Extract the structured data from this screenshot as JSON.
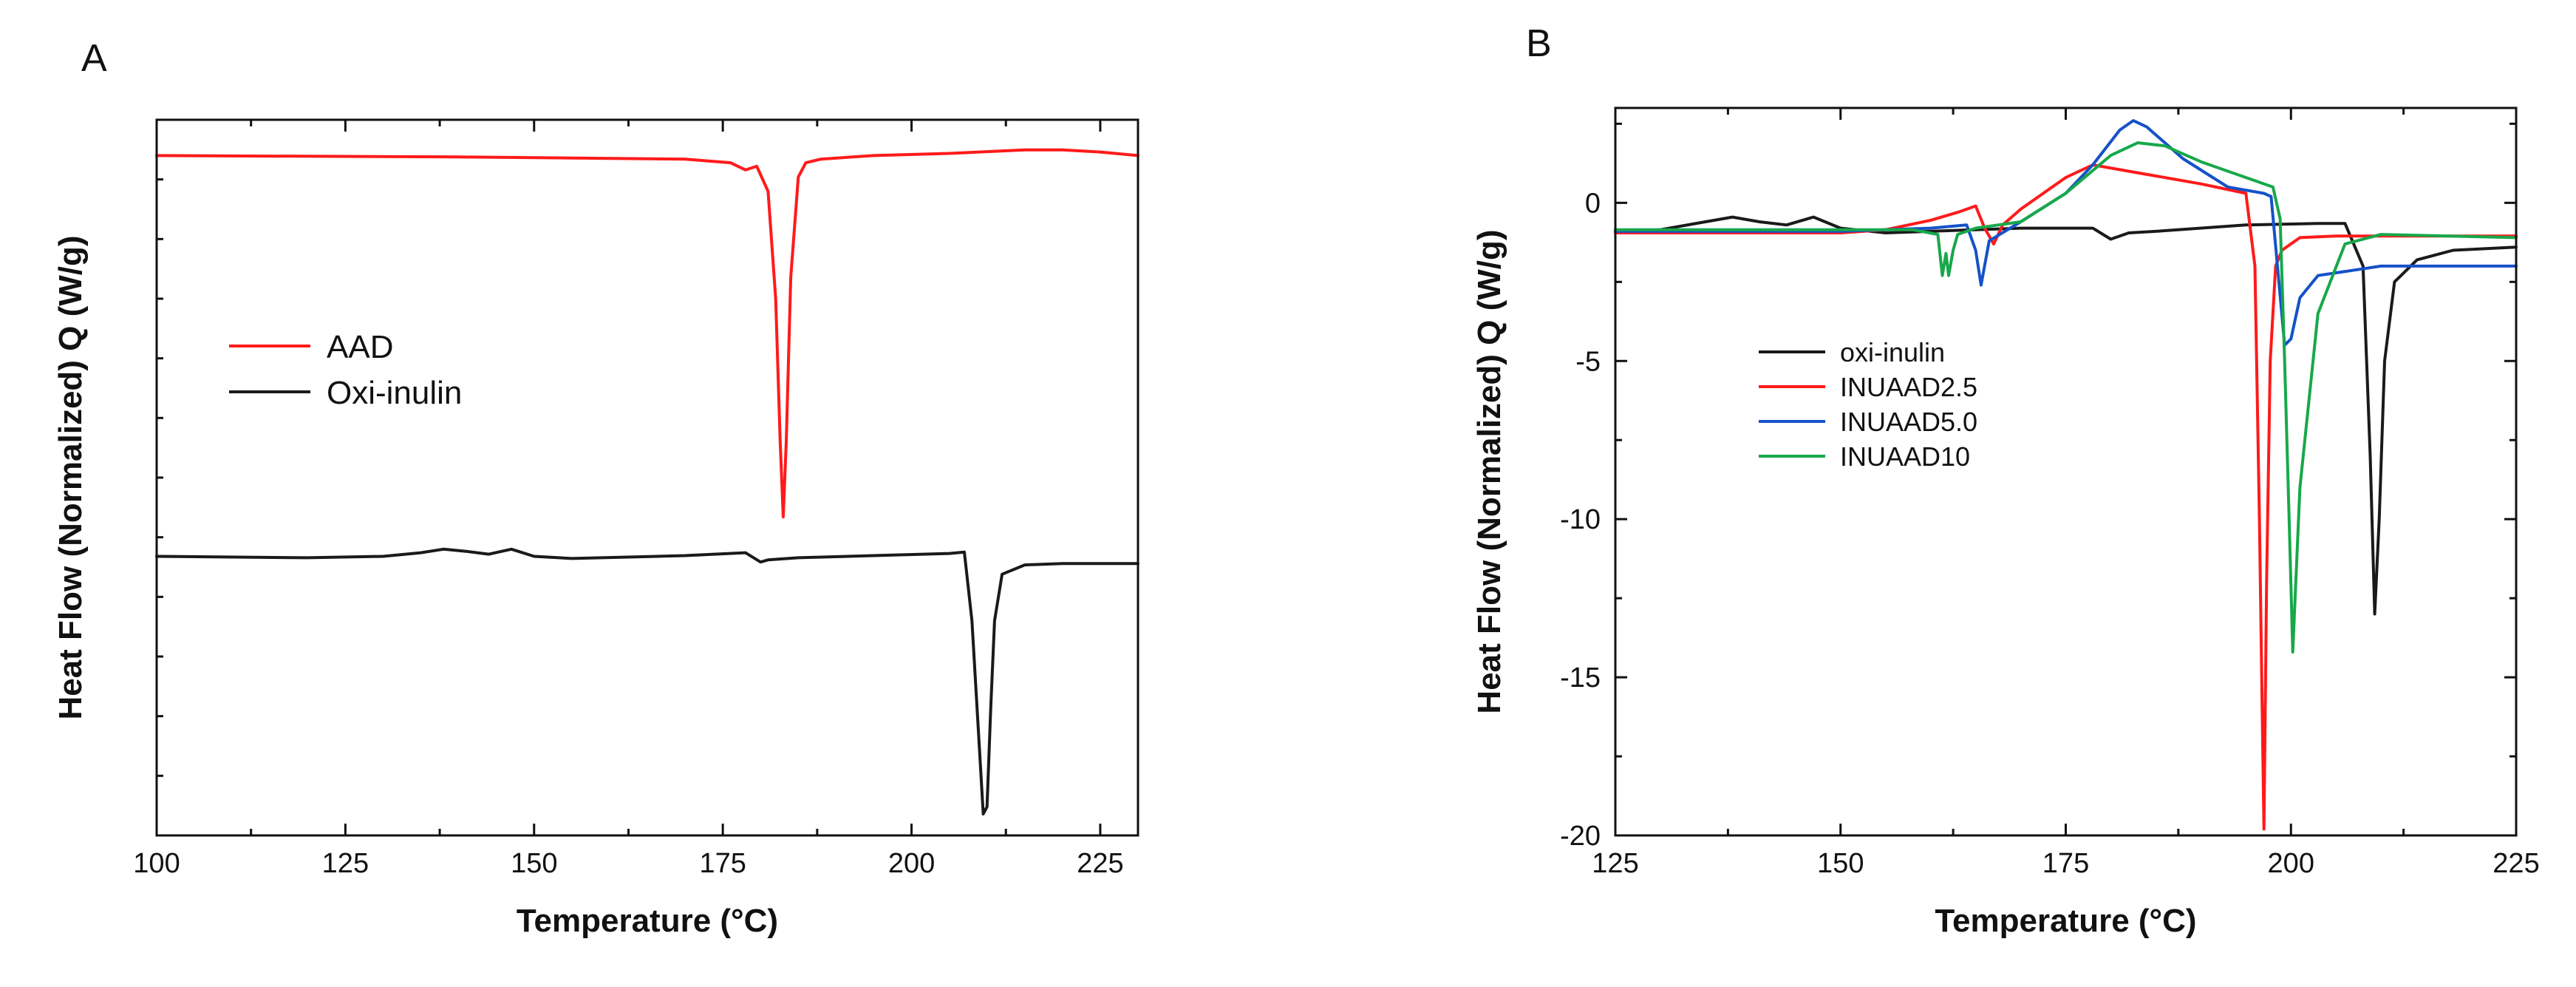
{
  "chart_data": [
    {
      "panel": "A",
      "type": "line",
      "title": "",
      "xlabel": "Temperature (°C)",
      "ylabel": "Heat Flow (Normalized) Q (W/g)",
      "xlim": [
        100,
        230
      ],
      "xticks": [
        100,
        125,
        150,
        175,
        200,
        225
      ],
      "ylim": [
        0,
        1
      ],
      "yticks": [],
      "legend": "center-left",
      "series": [
        {
          "name": "AAD",
          "color": "#ff1a1a",
          "x": [
            100,
            140,
            170,
            176,
            178,
            179.5,
            181,
            182,
            182.6,
            183,
            183.4,
            184,
            185,
            186,
            188,
            195,
            205,
            215,
            220,
            225,
            230
          ],
          "y": [
            0.95,
            0.948,
            0.945,
            0.94,
            0.93,
            0.935,
            0.9,
            0.75,
            0.55,
            0.445,
            0.55,
            0.78,
            0.92,
            0.94,
            0.945,
            0.95,
            0.953,
            0.958,
            0.958,
            0.955,
            0.95
          ]
        },
        {
          "name": "Oxi-inulin",
          "color": "#1a1a1a",
          "x": [
            100,
            120,
            130,
            135,
            138,
            141,
            144,
            147,
            150,
            155,
            170,
            178,
            180,
            181,
            185,
            195,
            205,
            207,
            208,
            209,
            209.5,
            210,
            210.5,
            211,
            212,
            215,
            220,
            230
          ],
          "y": [
            0.39,
            0.388,
            0.39,
            0.395,
            0.4,
            0.397,
            0.393,
            0.4,
            0.39,
            0.387,
            0.391,
            0.395,
            0.382,
            0.385,
            0.388,
            0.391,
            0.394,
            0.396,
            0.3,
            0.12,
            0.03,
            0.04,
            0.18,
            0.3,
            0.365,
            0.378,
            0.38,
            0.38
          ]
        }
      ]
    },
    {
      "panel": "B",
      "type": "line",
      "title": "",
      "xlabel": "Temperature (°C)",
      "ylabel": "Heat Flow (Normalized) Q (W/g)",
      "xlim": [
        125,
        225
      ],
      "xticks": [
        125,
        150,
        175,
        200,
        225
      ],
      "ylim": [
        -20,
        3
      ],
      "yticks": [
        0,
        -5,
        -10,
        -15,
        -20
      ],
      "legend": "center-left",
      "series": [
        {
          "name": "oxi-inulin",
          "color": "#1a1a1a",
          "x": [
            125,
            130,
            135,
            138,
            141,
            144,
            147,
            150,
            155,
            170,
            178,
            180,
            182,
            185,
            195,
            203,
            206,
            208,
            208.8,
            209.3,
            209.8,
            210.4,
            211.5,
            214,
            218,
            225
          ],
          "y": [
            -0.9,
            -0.85,
            -0.6,
            -0.45,
            -0.6,
            -0.7,
            -0.45,
            -0.8,
            -0.95,
            -0.8,
            -0.8,
            -1.15,
            -0.95,
            -0.9,
            -0.7,
            -0.65,
            -0.65,
            -2.0,
            -8.0,
            -13.0,
            -10.0,
            -5.0,
            -2.5,
            -1.8,
            -1.5,
            -1.4
          ]
        },
        {
          "name": "INUAAD2.5",
          "color": "#ff1a1a",
          "x": [
            125,
            150,
            155,
            160,
            163,
            165,
            166,
            167,
            168,
            170,
            175,
            178,
            182,
            190,
            195,
            196,
            196.5,
            197,
            197.3,
            197.7,
            198.3,
            199,
            201,
            205,
            215,
            225
          ],
          "y": [
            -0.95,
            -0.95,
            -0.85,
            -0.55,
            -0.3,
            -0.1,
            -0.8,
            -1.3,
            -0.7,
            -0.2,
            0.8,
            1.2,
            1.0,
            0.6,
            0.3,
            -2.0,
            -10.0,
            -19.8,
            -12.0,
            -5.0,
            -2.0,
            -1.5,
            -1.1,
            -1.05,
            -1.05,
            -1.05
          ]
        },
        {
          "name": "INUAAD5.0",
          "color": "#1552c8",
          "x": [
            125,
            150,
            160,
            164,
            165,
            165.6,
            166.5,
            170,
            175,
            178,
            181,
            182.5,
            184,
            188,
            193,
            197,
            197.8,
            198.5,
            199.3,
            200,
            201,
            203,
            210,
            225
          ],
          "y": [
            -0.9,
            -0.9,
            -0.8,
            -0.7,
            -1.5,
            -2.6,
            -1.2,
            -0.6,
            0.3,
            1.2,
            2.3,
            2.6,
            2.4,
            1.4,
            0.5,
            0.3,
            0.2,
            -2.0,
            -4.5,
            -4.3,
            -3.0,
            -2.3,
            -2.0,
            -2.0
          ]
        },
        {
          "name": "INUAAD10",
          "color": "#17a84a",
          "x": [
            125,
            150,
            158,
            160.8,
            161.3,
            161.7,
            162,
            162.5,
            163,
            165,
            170,
            175,
            180,
            183,
            186,
            190,
            195,
            198,
            198.8,
            199.3,
            199.8,
            200.2,
            201,
            203,
            206,
            210,
            225
          ],
          "y": [
            -0.85,
            -0.85,
            -0.85,
            -1.0,
            -2.3,
            -1.6,
            -2.3,
            -1.5,
            -1.0,
            -0.8,
            -0.6,
            0.3,
            1.5,
            1.9,
            1.8,
            1.3,
            0.8,
            0.5,
            -0.5,
            -5.0,
            -10.0,
            -14.2,
            -9.0,
            -3.5,
            -1.3,
            -1.0,
            -1.1
          ]
        }
      ]
    }
  ]
}
